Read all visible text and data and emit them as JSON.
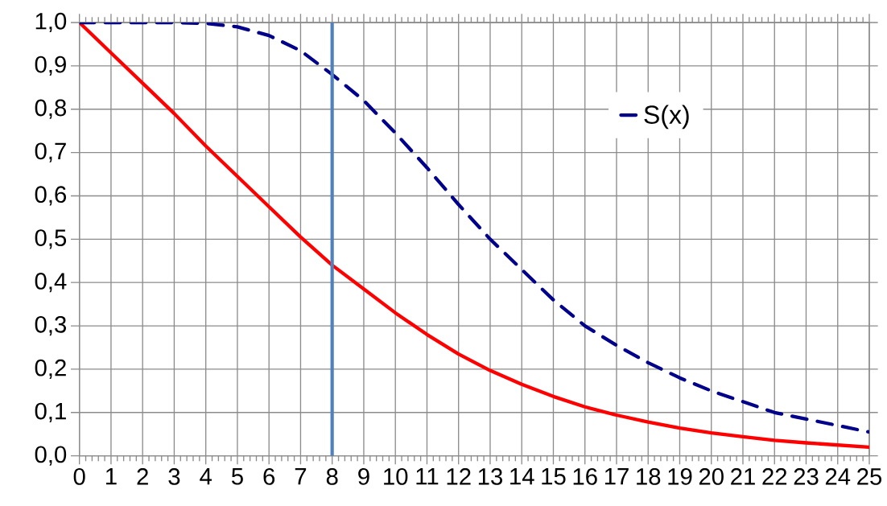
{
  "chart_data": {
    "type": "line",
    "x": [
      0,
      1,
      2,
      3,
      4,
      5,
      6,
      7,
      8,
      9,
      10,
      11,
      12,
      13,
      14,
      15,
      16,
      17,
      18,
      19,
      20,
      21,
      22,
      23,
      24,
      25
    ],
    "series": [
      {
        "color": "#ff0000",
        "line_style": "solid",
        "values": [
          1.0,
          0.93,
          0.86,
          0.79,
          0.715,
          0.645,
          0.575,
          0.505,
          0.44,
          0.385,
          0.33,
          0.28,
          0.235,
          0.197,
          0.165,
          0.137,
          0.113,
          0.094,
          0.078,
          0.064,
          0.053,
          0.044,
          0.036,
          0.03,
          0.025,
          0.02
        ]
      },
      {
        "name": "S(x)",
        "color": "#00008b",
        "line_style": "dashed",
        "values": [
          1.0,
          1.0,
          1.0,
          1.0,
          0.998,
          0.99,
          0.97,
          0.935,
          0.88,
          0.82,
          0.745,
          0.665,
          0.58,
          0.5,
          0.43,
          0.36,
          0.3,
          0.255,
          0.215,
          0.18,
          0.15,
          0.125,
          0.1,
          0.085,
          0.07,
          0.055
        ]
      }
    ],
    "xlim": [
      0,
      25
    ],
    "xticks": [
      0,
      1,
      2,
      3,
      4,
      5,
      6,
      7,
      8,
      9,
      10,
      11,
      12,
      13,
      14,
      15,
      16,
      17,
      18,
      19,
      20,
      21,
      22,
      23,
      24,
      25
    ],
    "ylim": [
      0,
      1
    ],
    "yticks": [
      {
        "value": 0,
        "label": "0,0"
      },
      {
        "value": 0.1,
        "label": "0,1"
      },
      {
        "value": 0.2,
        "label": "0,2"
      },
      {
        "value": 0.3,
        "label": "0,3"
      },
      {
        "value": 0.4,
        "label": "0,4"
      },
      {
        "value": 0.5,
        "label": "0,5"
      },
      {
        "value": 0.6,
        "label": "0,6"
      },
      {
        "value": 0.7,
        "label": "0,7"
      },
      {
        "value": 0.8,
        "label": "0,8"
      },
      {
        "value": 0.9,
        "label": "0,9"
      },
      {
        "value": 1.0,
        "label": "1,0"
      }
    ],
    "ref_lines": [
      {
        "axis": "x",
        "value": 8,
        "color": "#4f81bd"
      }
    ],
    "grid": true,
    "legend": "top right",
    "marker": "none"
  }
}
